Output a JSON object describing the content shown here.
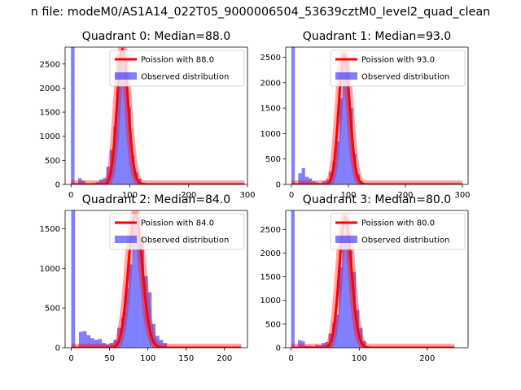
{
  "suptitle": "n file: modeM0/AS1A14_022T05_9000006504_53639cztM0_level2_quad_clean",
  "colors": {
    "poisson": "#ff0000",
    "observed": "#0000ff",
    "axes": "#000000",
    "background": "#ffffff"
  },
  "chart_data": [
    {
      "type": "bar",
      "title": "Quadrant 0: Median=88.0",
      "xlim": [
        -10,
        300
      ],
      "ylim": [
        0,
        2850
      ],
      "xticks": [
        0,
        100,
        200,
        300
      ],
      "yticks": [
        0,
        500,
        1000,
        1500,
        2000,
        2500
      ],
      "legend": {
        "position": "top-right",
        "entries": [
          "Poission with 88.0",
          "Observed distribution"
        ]
      },
      "series": [
        {
          "name": "Observed distribution",
          "kind": "histogram",
          "bin_width": 6,
          "bins": [
            [
              0,
              2850
            ],
            [
              6,
              10
            ],
            [
              12,
              130
            ],
            [
              18,
              80
            ],
            [
              24,
              15
            ],
            [
              30,
              15
            ],
            [
              36,
              30
            ],
            [
              42,
              50
            ],
            [
              48,
              100
            ],
            [
              54,
              130
            ],
            [
              60,
              370
            ],
            [
              66,
              720
            ],
            [
              72,
              1200
            ],
            [
              78,
              2700
            ],
            [
              84,
              2750
            ],
            [
              90,
              2600
            ],
            [
              96,
              1600
            ],
            [
              102,
              600
            ],
            [
              108,
              250
            ],
            [
              114,
              120
            ],
            [
              120,
              40
            ],
            [
              126,
              20
            ],
            [
              132,
              10
            ]
          ]
        },
        {
          "name": "Poission with 88.0",
          "kind": "line",
          "mean": 88,
          "x_range": [
            0,
            295
          ]
        }
      ]
    },
    {
      "type": "bar",
      "title": "Quadrant 1: Median=93.0",
      "xlim": [
        -10,
        310
      ],
      "ylim": [
        0,
        2700
      ],
      "xticks": [
        0,
        100,
        200,
        300
      ],
      "yticks": [
        0,
        500,
        1000,
        1500,
        2000,
        2500
      ],
      "legend": {
        "position": "top-right",
        "entries": [
          "Poission with 93.0",
          "Observed distribution"
        ]
      },
      "series": [
        {
          "name": "Observed distribution",
          "kind": "histogram",
          "bin_width": 6,
          "bins": [
            [
              0,
              2700
            ],
            [
              6,
              15
            ],
            [
              12,
              220
            ],
            [
              18,
              320
            ],
            [
              24,
              150
            ],
            [
              30,
              120
            ],
            [
              36,
              60
            ],
            [
              42,
              40
            ],
            [
              48,
              20
            ],
            [
              54,
              60
            ],
            [
              60,
              100
            ],
            [
              66,
              250
            ],
            [
              72,
              450
            ],
            [
              78,
              850
            ],
            [
              84,
              1700
            ],
            [
              90,
              2500
            ],
            [
              96,
              2400
            ],
            [
              102,
              1500
            ],
            [
              108,
              600
            ],
            [
              114,
              200
            ],
            [
              120,
              60
            ],
            [
              126,
              20
            ]
          ]
        },
        {
          "name": "Poission with 93.0",
          "kind": "line",
          "mean": 93,
          "x_range": [
            0,
            300
          ]
        }
      ]
    },
    {
      "type": "bar",
      "title": "Quadrant 2: Median=84.0",
      "xlim": [
        -8,
        230
      ],
      "ylim": [
        0,
        1730
      ],
      "xticks": [
        0,
        50,
        100,
        150,
        200
      ],
      "yticks": [
        0,
        500,
        1000,
        1500
      ],
      "legend": {
        "position": "top-right",
        "entries": [
          "Poission with 84.0",
          "Observed distribution"
        ]
      },
      "series": [
        {
          "name": "Observed distribution",
          "kind": "histogram",
          "bin_width": 5,
          "bins": [
            [
              0,
              1730
            ],
            [
              5,
              10
            ],
            [
              10,
              200
            ],
            [
              15,
              210
            ],
            [
              20,
              160
            ],
            [
              25,
              120
            ],
            [
              30,
              100
            ],
            [
              35,
              110
            ],
            [
              40,
              60
            ],
            [
              45,
              40
            ],
            [
              50,
              60
            ],
            [
              55,
              100
            ],
            [
              60,
              250
            ],
            [
              65,
              380
            ],
            [
              70,
              750
            ],
            [
              75,
              1050
            ],
            [
              80,
              1580
            ],
            [
              85,
              1650
            ],
            [
              90,
              1400
            ],
            [
              95,
              900
            ],
            [
              100,
              700
            ],
            [
              105,
              300
            ],
            [
              110,
              150
            ],
            [
              115,
              100
            ],
            [
              120,
              60
            ]
          ]
        },
        {
          "name": "Poission with 84.0",
          "kind": "line",
          "mean": 84,
          "x_range": [
            0,
            222
          ]
        }
      ]
    },
    {
      "type": "bar",
      "title": "Quadrant 3: Median=80.0",
      "xlim": [
        -8,
        260
      ],
      "ylim": [
        0,
        2900
      ],
      "xticks": [
        0,
        100,
        200
      ],
      "yticks": [
        0,
        500,
        1000,
        1500,
        2000,
        2500
      ],
      "legend": {
        "position": "top-right",
        "entries": [
          "Poission with 80.0",
          "Observed distribution"
        ]
      },
      "series": [
        {
          "name": "Observed distribution",
          "kind": "histogram",
          "bin_width": 5,
          "bins": [
            [
              0,
              2900
            ],
            [
              5,
              10
            ],
            [
              10,
              160
            ],
            [
              15,
              140
            ],
            [
              20,
              40
            ],
            [
              25,
              40
            ],
            [
              30,
              30
            ],
            [
              35,
              60
            ],
            [
              40,
              50
            ],
            [
              45,
              100
            ],
            [
              50,
              120
            ],
            [
              55,
              300
            ],
            [
              60,
              520
            ],
            [
              65,
              700
            ],
            [
              70,
              1700
            ],
            [
              75,
              2400
            ],
            [
              80,
              2700
            ],
            [
              85,
              2050
            ],
            [
              90,
              1600
            ],
            [
              95,
              800
            ],
            [
              100,
              420
            ],
            [
              105,
              140
            ],
            [
              110,
              20
            ]
          ]
        },
        {
          "name": "Poission with 80.0",
          "kind": "line",
          "mean": 80,
          "x_range": [
            0,
            240
          ]
        }
      ]
    }
  ]
}
